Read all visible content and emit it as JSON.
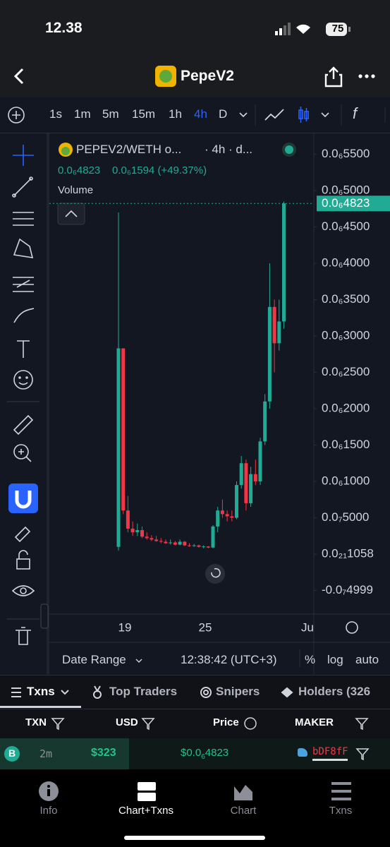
{
  "status_bar": {
    "time": "12.38",
    "battery": "75"
  },
  "header": {
    "title": "PepeV2"
  },
  "timeframes": [
    "1s",
    "1m",
    "5m",
    "15m",
    "1h",
    "4h",
    "D"
  ],
  "chart": {
    "type": "candlestick",
    "symbol": "PEPEV2/WETH o...",
    "interval": "· 4h · d...",
    "last": "0.0₆4823",
    "change": "0.0₆1594 (+49.37%)",
    "volume_label": "Volume",
    "up_color": "#22ab94",
    "down_color": "#f23645",
    "ylim": [
      -8.25e-08,
      5.68e-07
    ],
    "yticks": [
      {
        "value": 5.5e-07,
        "label": "0.0₆5500"
      },
      {
        "value": 5e-07,
        "label": "0.0₆5000"
      },
      {
        "value": 4.5e-07,
        "label": "0.0₆4500"
      },
      {
        "value": 4e-07,
        "label": "0.0₆4000"
      },
      {
        "value": 3.5e-07,
        "label": "0.0₆3500"
      },
      {
        "value": 3e-07,
        "label": "0.0₆3000"
      },
      {
        "value": 2.5e-07,
        "label": "0.0₆2500"
      },
      {
        "value": 2e-07,
        "label": "0.0₆2000"
      },
      {
        "value": 1.5e-07,
        "label": "0.0₆1500"
      },
      {
        "value": 1e-07,
        "label": "0.0₆1000"
      },
      {
        "value": 5e-08,
        "label": "0.0₇5000"
      },
      {
        "value": 1.058e-22,
        "label": "0.0₂₁1058"
      },
      {
        "value": -4.999e-08,
        "label": "-0.0₇4999"
      }
    ],
    "last_price": {
      "value": 4.823e-07,
      "label": "0.0₆4823"
    },
    "x_labels": [
      "19",
      "25",
      "Ju"
    ],
    "candles": [
      [
        1e-08,
        4.7e-07,
        5e-09,
        2.83e-07
      ],
      [
        2.83e-07,
        2.83e-07,
        5.5e-08,
        6e-08
      ],
      [
        6e-08,
        8e-08,
        3e-08,
        3.5e-08
      ],
      [
        3.5e-08,
        4.5e-08,
        2.5e-08,
        3e-08
      ],
      [
        3e-08,
        4.2e-08,
        2.5e-08,
        3.3e-08
      ],
      [
        3.3e-08,
        3.8e-08,
        2.2e-08,
        2.4e-08
      ],
      [
        2.4e-08,
        3e-08,
        2e-08,
        2.2e-08
      ],
      [
        2.2e-08,
        2.6e-08,
        1.8e-08,
        2e-08
      ],
      [
        2e-08,
        2.5e-08,
        1.7e-08,
        1.8e-08
      ],
      [
        1.8e-08,
        2.2e-08,
        1.5e-08,
        1.7e-08
      ],
      [
        1.7e-08,
        2e-08,
        1.4e-08,
        1.5e-08
      ],
      [
        1.5e-08,
        2e-08,
        1.3e-08,
        1.6e-08
      ],
      [
        1.6e-08,
        1.8e-08,
        1.2e-08,
        1.3e-08
      ],
      [
        1.3e-08,
        2e-08,
        1.2e-08,
        1.7e-08
      ],
      [
        1.7e-08,
        1.8e-08,
        1.1e-08,
        1.2e-08
      ],
      [
        1.2e-08,
        1.5e-08,
        1e-08,
        1.1e-08
      ],
      [
        1.1e-08,
        1.4e-08,
        1e-08,
        1.2e-08
      ],
      [
        1.2e-08,
        1.3e-08,
        9e-09,
        1e-08
      ],
      [
        1e-08,
        1.2e-08,
        8e-09,
        1.05e-08
      ],
      [
        1.05e-08,
        1.1e-08,
        8e-09,
        9e-09
      ],
      [
        9e-09,
        4e-08,
        8e-09,
        3.8e-08
      ],
      [
        3.8e-08,
        6.5e-08,
        3e-08,
        6e-08
      ],
      [
        6e-08,
        7.5e-08,
        5e-08,
        5.5e-08
      ],
      [
        5.5e-08,
        6e-08,
        4.5e-08,
        5.2e-08
      ],
      [
        5.2e-08,
        6e-08,
        4.5e-08,
        5e-08
      ],
      [
        5e-08,
        1e-07,
        4.8e-08,
        9.5e-08
      ],
      [
        9.5e-08,
        1.35e-07,
        9e-08,
        1.25e-07
      ],
      [
        1.25e-07,
        1.3e-07,
        6e-08,
        7e-08
      ],
      [
        7e-08,
        1.2e-07,
        6.5e-08,
        1.1e-07
      ],
      [
        1.1e-07,
        1.3e-07,
        9.5e-08,
        1e-07
      ],
      [
        1e-07,
        1.6e-07,
        9.5e-08,
        1.55e-07
      ],
      [
        1.55e-07,
        2.2e-07,
        1.5e-07,
        2.1e-07
      ],
      [
        2.1e-07,
        4e-07,
        2e-07,
        3.4e-07
      ],
      [
        3.4e-07,
        3.5e-07,
        2.5e-07,
        2.9e-07
      ],
      [
        2.9e-07,
        3.5e-07,
        2.8e-07,
        3.2e-07
      ],
      [
        3.2e-07,
        4.85e-07,
        3.1e-07,
        4.823e-07
      ]
    ]
  },
  "footer_bar": {
    "date_range": "Date Range",
    "clock": "12:38:42 (UTC+3)",
    "percent": "%",
    "log": "log",
    "auto": "auto"
  },
  "tabs": [
    "Txns",
    "Top Traders",
    "Snipers",
    "Holders (326"
  ],
  "table": {
    "headers": [
      "TXN",
      "USD",
      "Price",
      "MAKER"
    ],
    "rows": [
      {
        "side": "B",
        "age": "2m",
        "usd": "$323",
        "price_pre": "$0.0",
        "price_sub": "6",
        "price_main": "4823",
        "maker": "bDF8fF"
      }
    ]
  },
  "nav": [
    "Info",
    "Chart+Txns",
    "Chart",
    "Txns"
  ]
}
